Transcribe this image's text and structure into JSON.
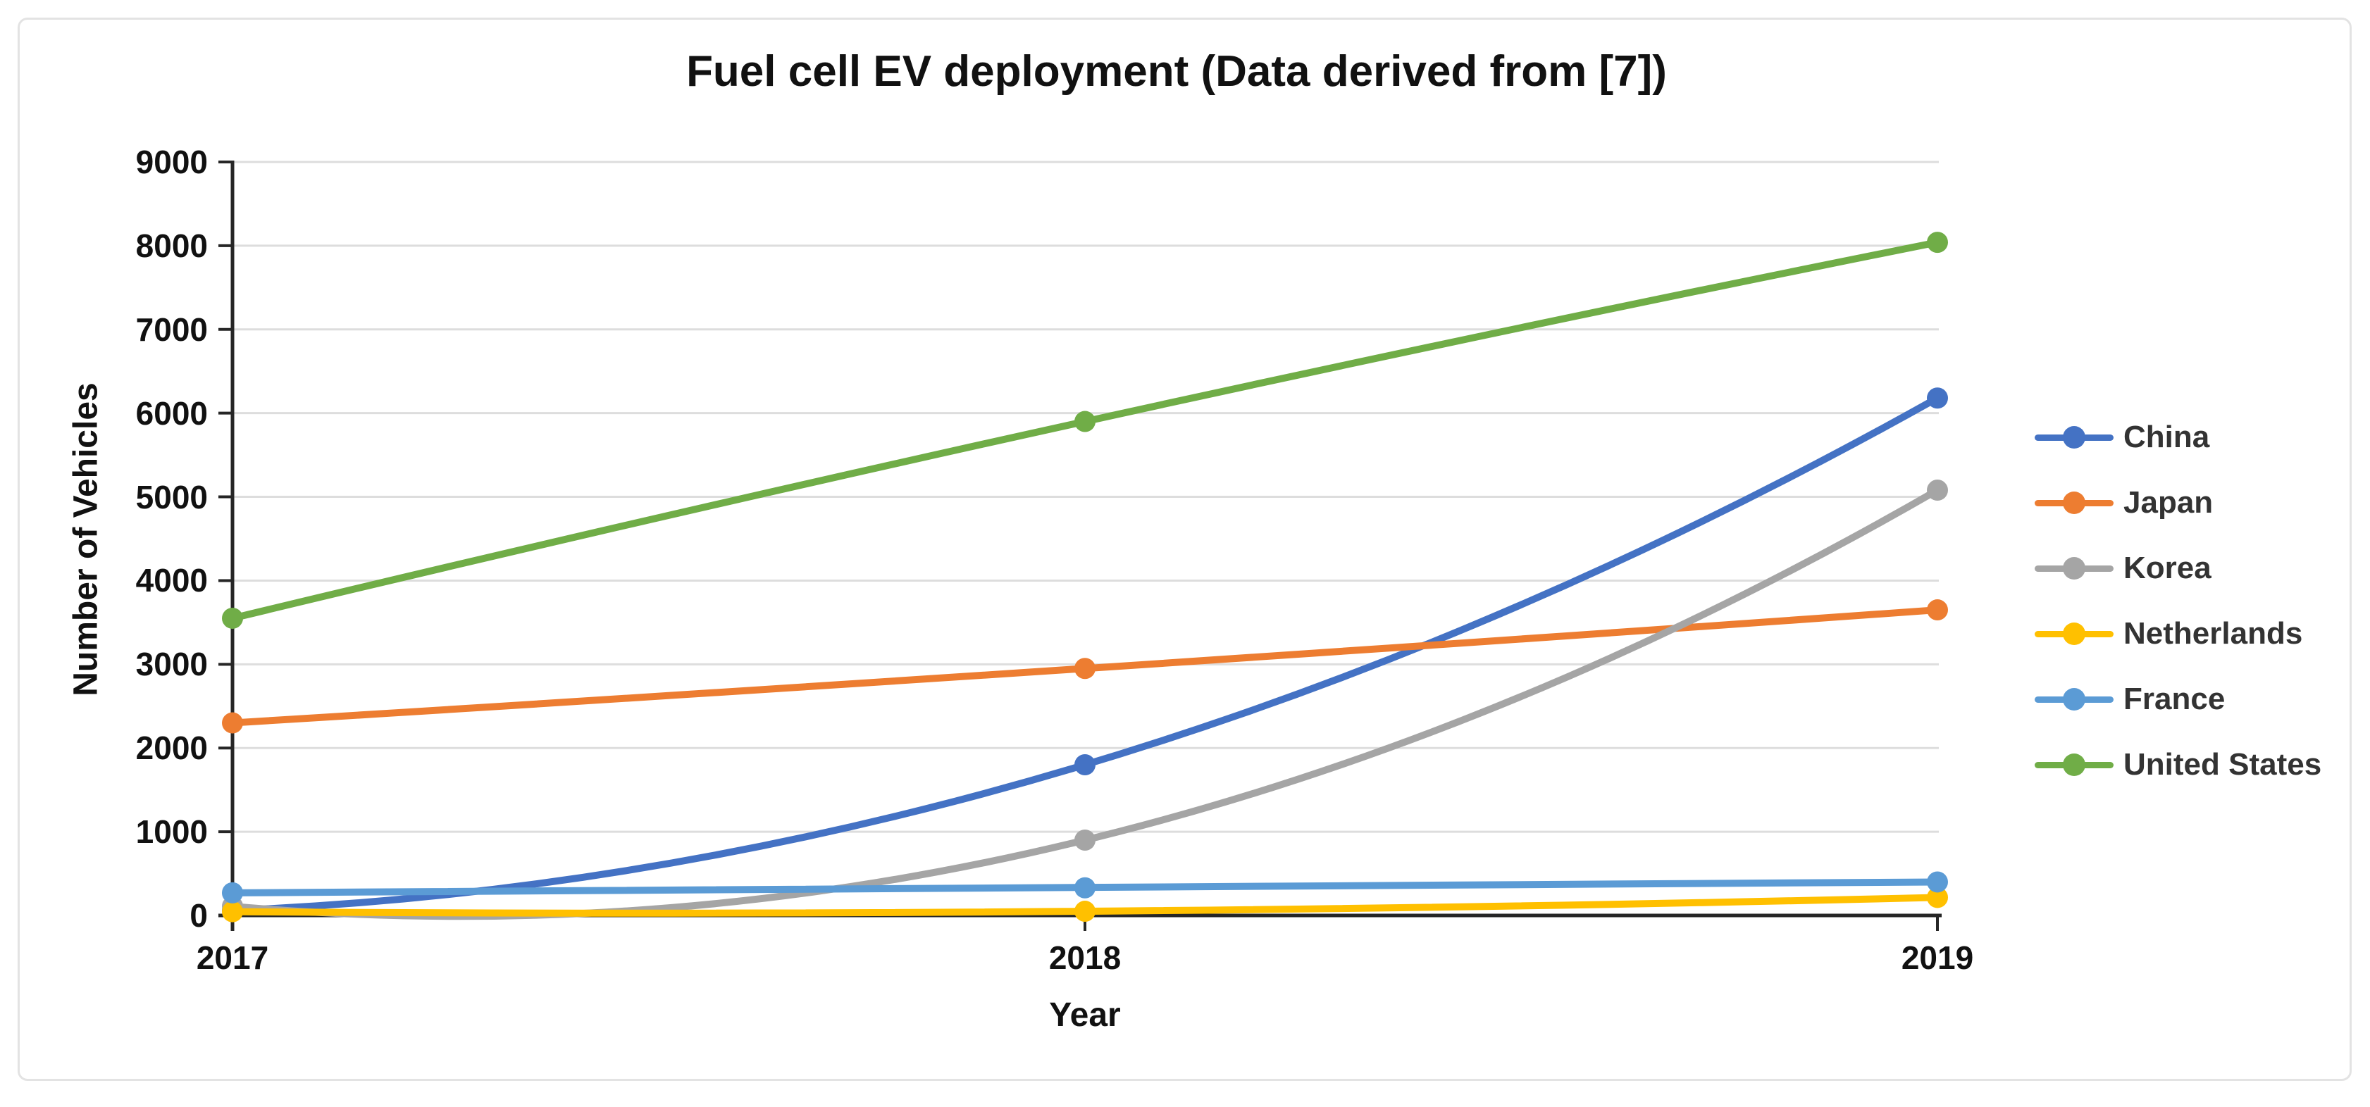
{
  "figure": {
    "background": "#ffffff",
    "border_color": "#e3e3e3"
  },
  "chart_data": {
    "type": "line",
    "title": "Fuel cell EV deployment (Data derived from [7])",
    "xlabel": "Year",
    "ylabel": "Number of Vehicles",
    "categories": [
      "2017",
      "2018",
      "2019"
    ],
    "series": [
      {
        "name": "China",
        "color": "#4472C4",
        "values": [
          60,
          1800,
          6180
        ]
      },
      {
        "name": "Japan",
        "color": "#ED7D31",
        "values": [
          2300,
          2950,
          3650
        ]
      },
      {
        "name": "Korea",
        "color": "#A5A5A5",
        "values": [
          110,
          900,
          5080
        ]
      },
      {
        "name": "Netherlands",
        "color": "#FFC000",
        "values": [
          45,
          50,
          215
        ]
      },
      {
        "name": "France",
        "color": "#5B9BD5",
        "values": [
          270,
          330,
          400
        ]
      },
      {
        "name": "United States",
        "color": "#70AD47",
        "values": [
          3550,
          5900,
          8040
        ]
      }
    ],
    "ylim": [
      0,
      9000
    ],
    "ytick_step": 1000,
    "yticks": [
      0,
      1000,
      2000,
      3000,
      4000,
      5000,
      6000,
      7000,
      8000,
      9000
    ],
    "grid": true,
    "smooth": true,
    "marker": "circle",
    "legend_position": "right",
    "axis_color": "#262626",
    "gridline_color": "#dddddd",
    "text_color": "#111111",
    "legend_text_color": "#333333"
  }
}
